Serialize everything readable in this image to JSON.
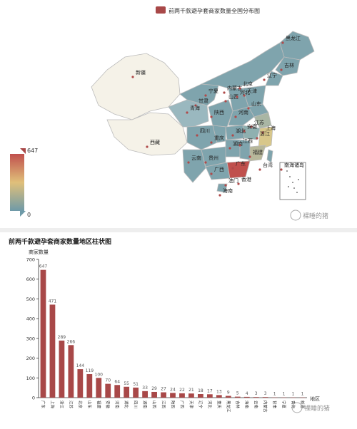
{
  "map": {
    "legend_label": "前两千款避孕套商家数量全国分布图",
    "legend_color": "#a84848",
    "visual_map": {
      "max": "647",
      "min": "0",
      "colors": [
        "#c0504d",
        "#e0c07a",
        "#6e9aa8"
      ]
    },
    "watermark": "裸睡的猪",
    "province_labels": [
      "新疆",
      "西藏",
      "黑龙江",
      "吉林",
      "辽宁",
      "内蒙古",
      "北京",
      "天津",
      "山西",
      "山东",
      "河北",
      "宁夏",
      "甘肃",
      "青海",
      "陕西",
      "河南",
      "江苏",
      "安徽",
      "上海",
      "浙江",
      "湖北",
      "四川",
      "重庆",
      "湖南",
      "江西",
      "福建",
      "云南",
      "贵州",
      "广西",
      "广东",
      "台湾",
      "香港",
      "海南",
      "南海诸岛",
      "澳门"
    ],
    "colors": {
      "high": "#c0504d",
      "mid": "#e0c07a",
      "low": "#6e9aa8",
      "empty": "#f5f2e8"
    }
  },
  "chart_data": {
    "type": "bar",
    "title": "前两千款避孕套商家数量地区柱状图",
    "ylabel": "商家数量",
    "xlabel": "地区",
    "ylim": [
      0,
      700
    ],
    "yticks": [
      0,
      100,
      200,
      300,
      400,
      500,
      600,
      700
    ],
    "categories": [
      "广东",
      "上海",
      "浙江",
      "江苏",
      "北京",
      "山东",
      "福建",
      "安徽",
      "河南",
      "湖北",
      "四川",
      "湖南",
      "山西",
      "江西",
      "陕西",
      "广西",
      "天津",
      "辽宁",
      "河北",
      "重庆",
      "黑龙江",
      "吉林",
      "海南",
      "云南",
      "内蒙古",
      "甘肃",
      "宁夏",
      "青海",
      "新疆"
    ],
    "values": [
      647,
      471,
      289,
      266,
      144,
      119,
      100,
      70,
      64,
      55,
      51,
      33,
      29,
      27,
      24,
      22,
      21,
      18,
      17,
      13,
      9,
      5,
      4,
      3,
      3,
      1,
      1,
      1,
      1
    ],
    "bar_color": "#a84848",
    "watermark": "裸睡的猪"
  }
}
